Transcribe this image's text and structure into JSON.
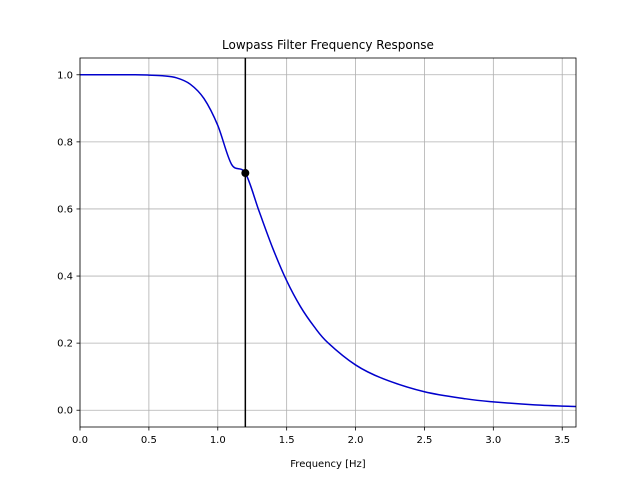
{
  "chart_data": {
    "type": "line",
    "title": "Lowpass Filter Frequency Response",
    "xlabel": "Frequency [Hz]",
    "ylabel": "",
    "xlim": [
      0,
      3.6
    ],
    "ylim": [
      -0.05,
      1.05
    ],
    "x_ticks": [
      0.0,
      0.5,
      1.0,
      1.5,
      2.0,
      2.5,
      3.0,
      3.5
    ],
    "x_tick_labels": [
      "0.0",
      "0.5",
      "1.0",
      "1.5",
      "2.0",
      "2.5",
      "3.0",
      "3.5"
    ],
    "y_ticks": [
      0.0,
      0.2,
      0.4,
      0.6,
      0.8,
      1.0
    ],
    "y_tick_labels": [
      "0.0",
      "0.2",
      "0.4",
      "0.6",
      "0.8",
      "1.0"
    ],
    "grid": true,
    "series": [
      {
        "color": "#0000cc",
        "x": [
          0.0,
          0.2,
          0.4,
          0.5,
          0.6,
          0.7,
          0.8,
          0.9,
          1.0,
          1.1,
          1.2,
          1.3,
          1.4,
          1.5,
          1.6,
          1.7,
          1.8,
          2.0,
          2.2,
          2.5,
          2.8,
          3.0,
          3.3,
          3.6
        ],
        "y": [
          1.0,
          1.0,
          1.0,
          0.999,
          0.997,
          0.991,
          0.972,
          0.929,
          0.849,
          0.733,
          0.707,
          0.593,
          0.482,
          0.386,
          0.309,
          0.249,
          0.201,
          0.135,
          0.094,
          0.055,
          0.034,
          0.025,
          0.016,
          0.011
        ]
      }
    ],
    "cutoff": {
      "x": 1.2,
      "y": 0.707,
      "line_color": "#000000",
      "marker_color": "#000000"
    }
  }
}
